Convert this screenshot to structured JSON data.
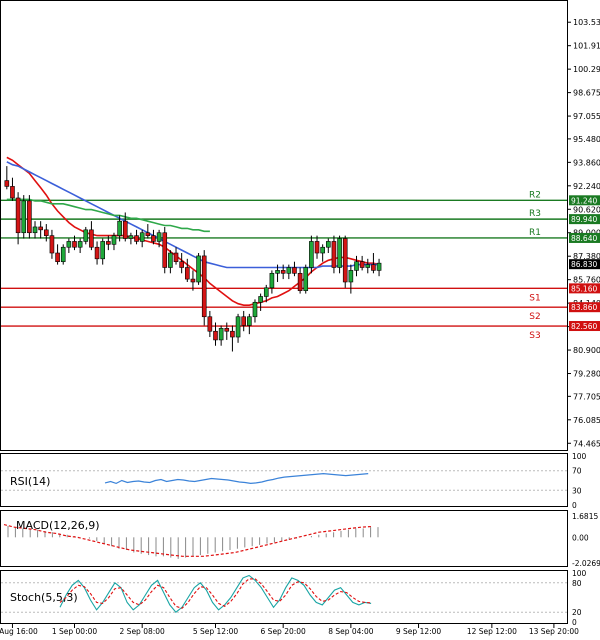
{
  "chart_data": {
    "type": "candlestick",
    "title": "",
    "price_axis": {
      "ylim": [
        74.0,
        105.0
      ],
      "ticks": [
        "103.535",
        "101.915",
        "100.295",
        "98.675",
        "97.055",
        "95.480",
        "93.860",
        "92.240",
        "90.620",
        "89.000",
        "87.380",
        "85.760",
        "84.140",
        "82.520",
        "80.900",
        "79.280",
        "77.705",
        "76.085",
        "74.465"
      ],
      "current_price": "86.830"
    },
    "x_axis": {
      "labels": [
        "30 Aug 16:00",
        "1 Sep 00:00",
        "2 Sep 08:00",
        "5 Sep 12:00",
        "6 Sep 20:00",
        "8 Sep 04:00",
        "9 Sep 12:00",
        "12 Sep 12:00",
        "13 Sep 20:00"
      ],
      "label_bars": [
        1,
        12,
        24,
        37,
        49,
        61,
        73,
        86,
        97
      ]
    },
    "levels": [
      {
        "name": "R3",
        "value": 89.94,
        "label": "89.940",
        "kind": "resistance"
      },
      {
        "name": "R2",
        "value": 91.24,
        "label": "91.240",
        "kind": "resistance"
      },
      {
        "name": "R1",
        "value": 88.64,
        "label": "88.640",
        "kind": "resistance"
      },
      {
        "name": "S1",
        "value": 85.16,
        "label": "85.160",
        "kind": "support"
      },
      {
        "name": "S2",
        "value": 83.86,
        "label": "83.860",
        "kind": "support"
      },
      {
        "name": "S3",
        "value": 82.56,
        "label": "82.560",
        "kind": "support"
      }
    ],
    "candles": [
      [
        92.6,
        93.6,
        92.0,
        92.2
      ],
      [
        92.2,
        92.8,
        91.2,
        91.4
      ],
      [
        91.4,
        91.8,
        88.2,
        89.0
      ],
      [
        89.0,
        91.6,
        88.6,
        91.2
      ],
      [
        91.2,
        91.6,
        88.6,
        89.0
      ],
      [
        89.0,
        89.8,
        88.6,
        89.4
      ],
      [
        89.4,
        89.8,
        88.6,
        89.2
      ],
      [
        89.2,
        89.6,
        88.4,
        88.8
      ],
      [
        88.8,
        89.2,
        87.2,
        87.6
      ],
      [
        87.6,
        88.2,
        86.8,
        87.0
      ],
      [
        87.0,
        88.2,
        86.8,
        88.0
      ],
      [
        88.0,
        88.6,
        87.6,
        88.4
      ],
      [
        88.4,
        88.8,
        87.8,
        88.0
      ],
      [
        88.0,
        88.6,
        87.6,
        88.4
      ],
      [
        88.4,
        89.4,
        88.2,
        89.2
      ],
      [
        89.2,
        89.8,
        87.8,
        88.0
      ],
      [
        88.0,
        88.4,
        86.8,
        87.2
      ],
      [
        87.2,
        88.6,
        86.8,
        88.4
      ],
      [
        88.4,
        88.8,
        87.8,
        88.2
      ],
      [
        88.2,
        89.0,
        87.8,
        88.8
      ],
      [
        88.8,
        90.2,
        88.4,
        89.8
      ],
      [
        89.8,
        90.4,
        88.4,
        88.6
      ],
      [
        88.6,
        89.0,
        88.2,
        88.8
      ],
      [
        88.8,
        89.2,
        88.2,
        88.4
      ],
      [
        88.4,
        89.2,
        88.0,
        89.0
      ],
      [
        89.0,
        89.6,
        88.6,
        88.8
      ],
      [
        88.8,
        89.2,
        88.2,
        88.4
      ],
      [
        88.4,
        89.2,
        88.0,
        89.0
      ],
      [
        89.0,
        89.4,
        86.2,
        86.6
      ],
      [
        86.6,
        87.8,
        86.2,
        87.6
      ],
      [
        87.6,
        88.0,
        86.8,
        87.0
      ],
      [
        87.0,
        87.6,
        86.2,
        86.6
      ],
      [
        86.6,
        87.2,
        85.6,
        85.8
      ],
      [
        85.8,
        86.4,
        85.0,
        85.6
      ],
      [
        85.6,
        87.6,
        85.4,
        87.4
      ],
      [
        87.4,
        87.8,
        82.6,
        83.2
      ],
      [
        83.2,
        83.6,
        81.8,
        82.2
      ],
      [
        82.2,
        82.8,
        81.2,
        81.6
      ],
      [
        81.6,
        82.6,
        81.2,
        82.4
      ],
      [
        82.4,
        82.8,
        81.6,
        82.2
      ],
      [
        82.2,
        82.6,
        80.8,
        81.8
      ],
      [
        81.8,
        83.4,
        81.4,
        83.2
      ],
      [
        83.2,
        83.6,
        82.2,
        82.6
      ],
      [
        82.6,
        83.4,
        82.0,
        83.2
      ],
      [
        83.2,
        84.4,
        82.8,
        84.2
      ],
      [
        84.2,
        84.8,
        83.6,
        84.6
      ],
      [
        84.6,
        85.4,
        84.2,
        85.2
      ],
      [
        85.2,
        86.4,
        84.8,
        86.2
      ],
      [
        86.2,
        86.8,
        85.6,
        86.4
      ],
      [
        86.4,
        86.8,
        85.8,
        86.2
      ],
      [
        86.2,
        86.8,
        85.8,
        86.6
      ],
      [
        86.6,
        87.0,
        86.0,
        86.2
      ],
      [
        86.2,
        86.6,
        84.8,
        85.0
      ],
      [
        85.0,
        86.8,
        84.8,
        86.6
      ],
      [
        86.6,
        88.8,
        86.2,
        88.4
      ],
      [
        88.4,
        88.8,
        87.2,
        87.6
      ],
      [
        87.6,
        88.2,
        87.0,
        88.0
      ],
      [
        88.0,
        88.6,
        87.6,
        88.4
      ],
      [
        88.4,
        88.8,
        86.2,
        86.6
      ],
      [
        86.6,
        88.8,
        86.2,
        88.6
      ],
      [
        88.6,
        88.8,
        85.2,
        85.6
      ],
      [
        85.6,
        86.8,
        84.8,
        86.4
      ],
      [
        86.4,
        87.4,
        86.0,
        87.0
      ],
      [
        87.0,
        87.4,
        86.4,
        86.6
      ],
      [
        86.6,
        87.2,
        86.2,
        86.8
      ],
      [
        86.8,
        87.6,
        86.2,
        86.4
      ],
      [
        86.4,
        87.2,
        86.0,
        86.9
      ]
    ],
    "overlays": [
      {
        "name": "MA red",
        "color": "#e01010",
        "values": [
          94.2,
          94.0,
          93.7,
          93.4,
          93.1,
          92.6,
          92.1,
          91.6,
          91.0,
          90.5,
          90.1,
          89.7,
          89.4,
          89.2,
          89.0,
          88.9,
          88.8,
          88.8,
          88.8,
          88.8,
          88.8,
          88.8,
          88.7,
          88.6,
          88.5,
          88.4,
          88.3,
          88.2,
          88.0,
          87.7,
          87.4,
          87.1,
          86.8,
          86.5,
          86.2,
          85.9,
          85.5,
          85.2,
          84.9,
          84.6,
          84.3,
          84.1,
          84.0,
          84.0,
          84.1,
          84.2,
          84.3,
          84.5,
          84.6,
          84.8,
          85.0,
          85.3,
          85.6,
          85.9,
          86.3,
          86.6,
          86.9,
          87.1,
          87.2,
          87.3,
          87.3,
          87.2,
          87.1,
          87.0,
          86.9,
          86.9,
          86.8
        ]
      },
      {
        "name": "MA blue",
        "color": "#3b5fd9",
        "values": [
          93.9,
          93.7,
          93.6,
          93.4,
          93.2,
          93.0,
          92.8,
          92.6,
          92.4,
          92.2,
          92.0,
          91.8,
          91.6,
          91.4,
          91.2,
          91.0,
          90.8,
          90.6,
          90.4,
          90.2,
          90.0,
          89.8,
          89.6,
          89.4,
          89.2,
          89.0,
          88.8,
          88.6,
          88.4,
          88.2,
          88.0,
          87.8,
          87.6,
          87.4,
          87.2,
          87.0,
          86.9,
          86.8,
          86.7,
          86.6,
          86.6,
          86.6,
          86.6,
          86.6,
          86.6,
          86.6,
          86.6,
          86.6,
          86.6,
          86.6,
          86.6,
          86.6,
          86.6,
          86.6,
          86.6,
          86.6,
          86.7,
          86.7,
          86.7,
          86.7,
          86.7,
          86.7,
          86.8,
          86.8,
          86.8,
          86.8,
          86.8
        ]
      },
      {
        "name": "MA green",
        "color": "#2fa84a",
        "values": [
          91.3,
          91.3,
          91.3,
          91.3,
          91.3,
          91.2,
          91.2,
          91.1,
          91.0,
          91.0,
          91.0,
          90.9,
          90.8,
          90.7,
          90.6,
          90.6,
          90.5,
          90.4,
          90.3,
          90.2,
          90.2,
          90.1,
          90.0,
          90.0,
          89.9,
          89.8,
          89.7,
          89.6,
          89.5,
          89.5,
          89.4,
          89.3,
          89.3,
          89.2,
          89.2,
          89.1,
          89.1
        ]
      }
    ],
    "rsi": {
      "label": "RSI(14)",
      "ticks": [
        "100",
        "70",
        "30",
        "0"
      ],
      "values": [
        45,
        48,
        44,
        50,
        46,
        48,
        49,
        47,
        46,
        50,
        52,
        48,
        50,
        52,
        51,
        49,
        48,
        50,
        52,
        54,
        53,
        52,
        51,
        49,
        47,
        46,
        44,
        45,
        47,
        50,
        52,
        55,
        57,
        58,
        59,
        60,
        61,
        62,
        63,
        64,
        63,
        62,
        61,
        60,
        61,
        62,
        63,
        64
      ]
    },
    "macd": {
      "label": "MACD(12,26,9)",
      "ticks": [
        "1.6815",
        "0.00",
        "-2.0269"
      ],
      "hist": [
        0.9,
        0.8,
        0.7,
        0.7,
        0.6,
        0.5,
        0.4,
        0.3,
        0.2,
        0.1,
        0.0,
        -0.1,
        -0.3,
        -0.5,
        -0.7,
        -0.9,
        -1.0,
        -1.2,
        -1.3,
        -1.4,
        -1.5,
        -1.5,
        -1.6,
        -1.7,
        -1.6,
        -1.5,
        -1.4,
        -1.3,
        -1.2,
        -1.1,
        -1.0,
        -0.9,
        -0.8,
        -0.7,
        -0.6,
        -0.5,
        -0.4,
        -0.3,
        -0.2,
        -0.1,
        0.0,
        0.1,
        0.2,
        0.3,
        0.4,
        0.5,
        0.6,
        0.7,
        0.7,
        0.8,
        0.8
      ],
      "signal": [
        1.0,
        0.8,
        0.7,
        0.6,
        0.4,
        0.3,
        0.1,
        0.0,
        -0.2,
        -0.4,
        -0.6,
        -0.8,
        -1.0,
        -1.1,
        -1.2,
        -1.3,
        -1.4,
        -1.5,
        -1.5,
        -1.5,
        -1.4,
        -1.3,
        -1.2,
        -1.0,
        -0.8,
        -0.6,
        -0.4,
        -0.2,
        0.0,
        0.2,
        0.4,
        0.5,
        0.6,
        0.7,
        0.8,
        0.85
      ]
    },
    "stoch": {
      "label": "Stoch(5,5,3)",
      "ticks": [
        "100",
        "80",
        "20",
        "0"
      ],
      "k": [
        30,
        55,
        75,
        85,
        70,
        45,
        25,
        40,
        60,
        80,
        70,
        40,
        25,
        35,
        55,
        75,
        85,
        60,
        35,
        20,
        30,
        50,
        70,
        80,
        65,
        40,
        25,
        35,
        50,
        70,
        90,
        95,
        85,
        70,
        50,
        30,
        45,
        70,
        90,
        85,
        75,
        55,
        40,
        35,
        50,
        65,
        70,
        55,
        40,
        35,
        40,
        38
      ],
      "d": [
        40,
        50,
        65,
        75,
        72,
        58,
        40,
        38,
        50,
        68,
        70,
        55,
        40,
        35,
        45,
        62,
        75,
        70,
        50,
        32,
        28,
        40,
        58,
        72,
        70,
        55,
        38,
        32,
        42,
        58,
        78,
        88,
        88,
        78,
        62,
        45,
        42,
        55,
        75,
        82,
        80,
        68,
        52,
        42,
        45,
        55,
        62,
        60,
        50,
        42,
        40,
        39
      ]
    }
  }
}
